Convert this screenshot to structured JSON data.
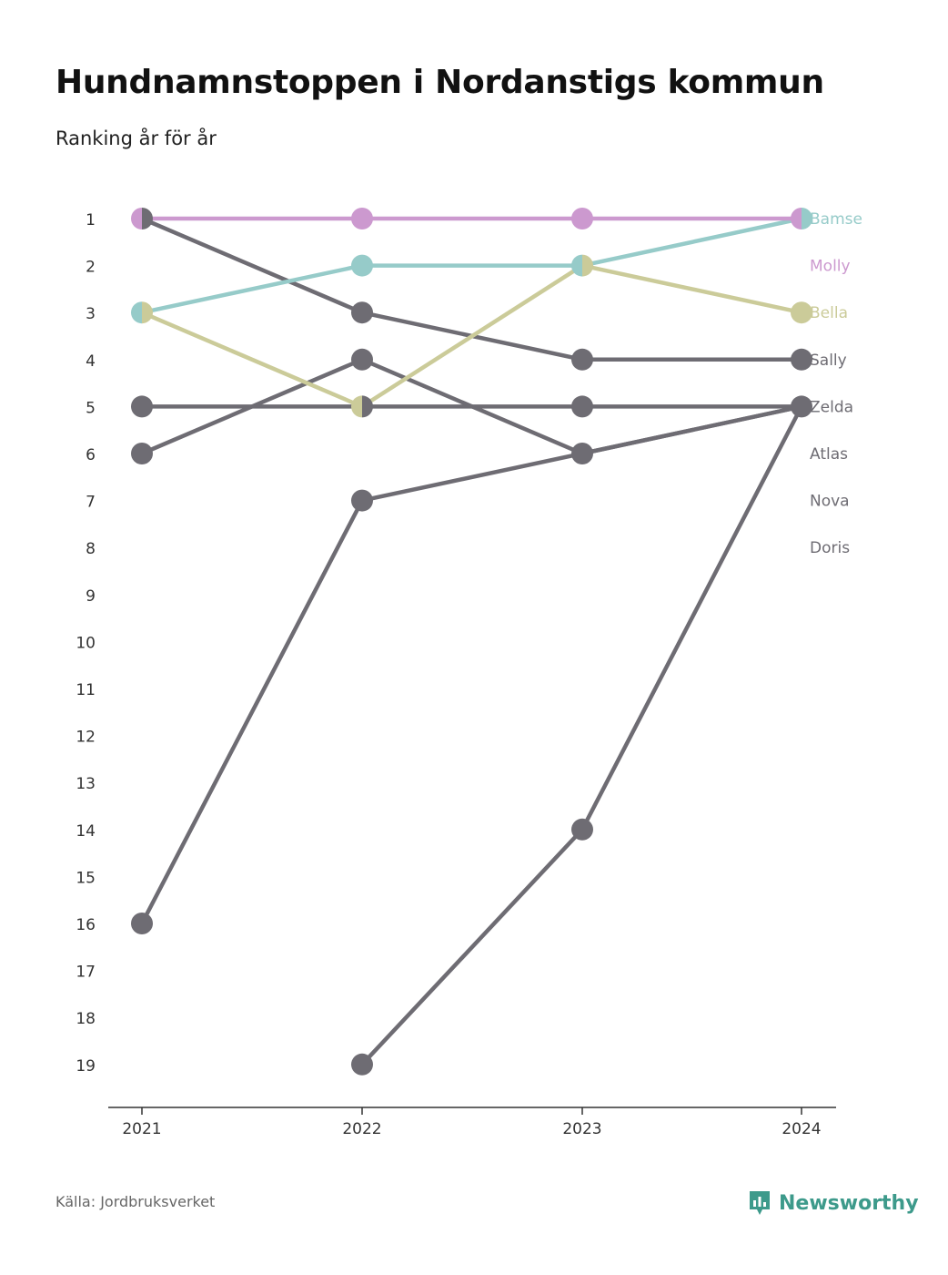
{
  "header": {
    "title": "Hundnamnstoppen i Nordanstigs kommun",
    "subtitle": "Ranking år för år"
  },
  "footer": {
    "source": "Källa: Jordbruksverket",
    "brand": "Newsworthy",
    "brand_icon": "newsworthy-logo-icon"
  },
  "colors": {
    "Bamse": "#96cbc9",
    "Molly": "#cc99cf",
    "Bella": "#cbcb99",
    "other": "#6e6c73",
    "axis": "#333333",
    "brand": "#3d9a8b"
  },
  "chart_data": {
    "type": "line",
    "x": [
      "2021",
      "2022",
      "2023",
      "2024"
    ],
    "y_ticks": [
      "1",
      "2",
      "3",
      "4",
      "5",
      "6",
      "7",
      "8",
      "9",
      "10",
      "11",
      "12",
      "13",
      "14",
      "15",
      "16",
      "17",
      "18",
      "19"
    ],
    "ylim": [
      1,
      19
    ],
    "y_inverted": true,
    "series": [
      {
        "name": "Bamse",
        "values": [
          3,
          2,
          2,
          1
        ]
      },
      {
        "name": "Molly",
        "values": [
          1,
          1,
          1,
          1
        ]
      },
      {
        "name": "Bella",
        "values": [
          3,
          5,
          2,
          3
        ]
      },
      {
        "name": "Sally",
        "values": [
          1,
          3,
          4,
          4
        ]
      },
      {
        "name": "Zelda",
        "values": [
          5,
          5,
          5,
          5
        ]
      },
      {
        "name": "Atlas",
        "values": [
          6,
          4,
          6,
          5
        ]
      },
      {
        "name": "Nova",
        "values": [
          16,
          7,
          6,
          5
        ]
      },
      {
        "name": "Doris",
        "values": [
          null,
          19,
          14,
          5
        ]
      }
    ]
  }
}
